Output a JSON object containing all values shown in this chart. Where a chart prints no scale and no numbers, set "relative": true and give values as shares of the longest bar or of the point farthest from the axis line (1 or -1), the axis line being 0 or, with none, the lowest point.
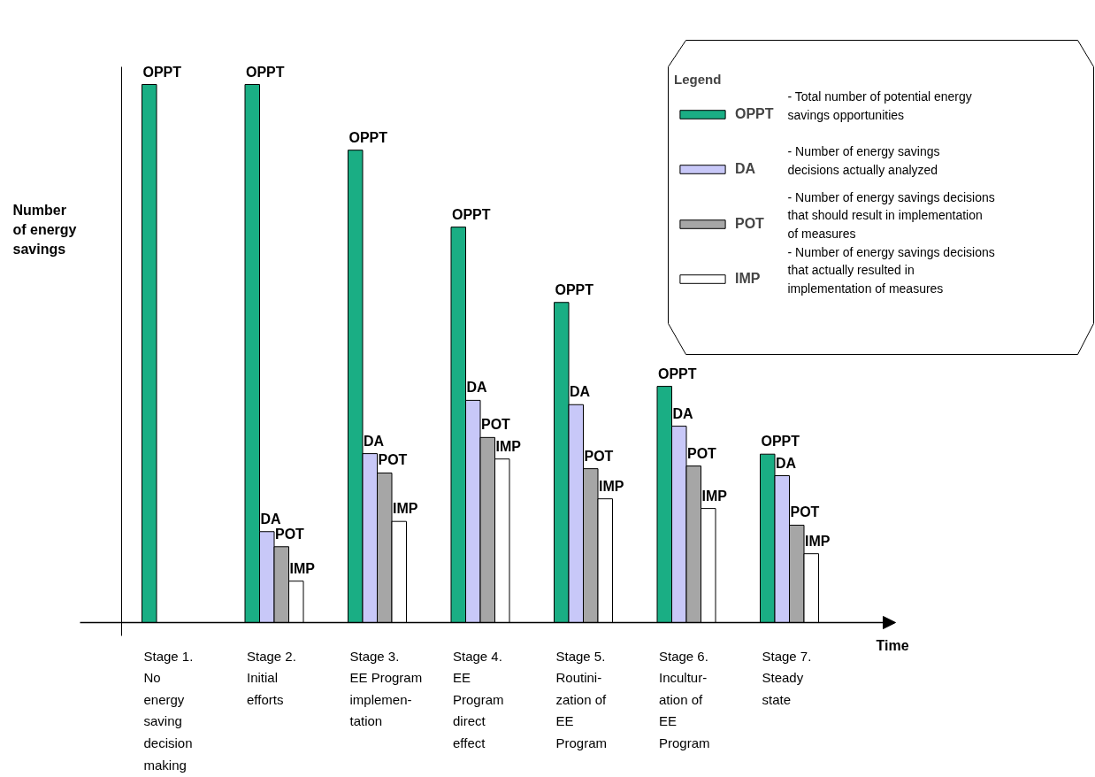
{
  "chart_data": {
    "type": "bar",
    "relative": true,
    "xlabel": "Time",
    "ylabel": "Number\nof energy\nsavings",
    "legend_title": "Legend",
    "legend": "top right",
    "categories": [
      "Stage 1.\nNo\nenergy\nsaving\ndecision\nmaking",
      "Stage 2.\nInitial\nefforts",
      "Stage 3.\nEE Program\nimplemen-\ntation",
      "Stage 4.\nEE\nProgram\ndirect\neffect",
      "Stage 5.\nRoutini-\nzation of\nEE\nProgram",
      "Stage 6.\nIncultur-\nation of\nEE\nProgram",
      "Stage 7.\nSteady\nstate"
    ],
    "series": [
      {
        "name": "OPPT",
        "color": "#1aae84",
        "values": [
          1.0,
          1.0,
          0.878,
          0.735,
          0.595,
          0.439,
          0.313
        ]
      },
      {
        "name": "DA",
        "color": "#c8c8f8",
        "values": [
          null,
          0.169,
          0.314,
          0.413,
          0.405,
          0.365,
          0.273
        ]
      },
      {
        "name": "POT",
        "color": "#a6a6a6",
        "values": [
          null,
          0.141,
          0.278,
          0.344,
          0.286,
          0.291,
          0.181
        ]
      },
      {
        "name": "IMP",
        "color": "#ffffff",
        "values": [
          null,
          0.077,
          0.188,
          0.304,
          0.23,
          0.212,
          0.128
        ]
      }
    ],
    "annotations": [
      "- Total number of potential energy\nsavings opportunities",
      "- Number of energy savings\ndecisions actually analyzed",
      "- Number of energy savings  decisions\nthat should result in implementation\nof measures",
      "- Number of energy savings  decisions\nthat actually resulted in\nimplementation of measures"
    ]
  }
}
